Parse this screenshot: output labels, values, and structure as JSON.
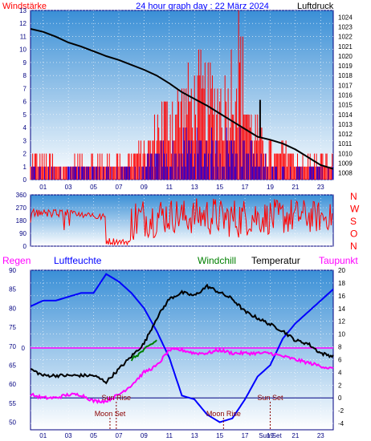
{
  "header": {
    "left_label": "Windstärke",
    "title": "24 hour graph day : 22 März 2024",
    "right_label": "Luftdruck"
  },
  "colors": {
    "background": "#ffffff",
    "panel_top": "#3a8fd6",
    "panel_bottom": "#ffffff",
    "wind_gust": "#ff0000",
    "wind_avg": "#0000ff",
    "pressure": "#000000",
    "wind_dir": "#ff0000",
    "temperature": "#000000",
    "humidity": "#0000ff",
    "dewpoint": "#ff00ff",
    "windchill": "#008000",
    "reference_line": "#ff00ff",
    "annotation": "#8b0000"
  },
  "x_ticks": [
    "01",
    "03",
    "05",
    "07",
    "09",
    "11",
    "13",
    "15",
    "17",
    "19",
    "21",
    "23"
  ],
  "panel3": {
    "legend": {
      "rain": "Regen",
      "humidity": "Luftfeuchte",
      "windchill": "Windchill",
      "temperature": "Temperatur",
      "dewpoint": "Taupunkt"
    },
    "left_ticks": [
      "90",
      "85",
      "80",
      "75",
      "70",
      "65",
      "60",
      "55",
      "50"
    ],
    "right_ticks": [
      "20",
      "18",
      "16",
      "14",
      "12",
      "10",
      "8",
      "6",
      "4",
      "2",
      "0",
      "-2",
      "-4"
    ],
    "rain_zero_label": "0",
    "x_ticks": [
      "01",
      "03",
      "05",
      "07",
      "09",
      "11",
      "13",
      "15",
      "17",
      "19",
      "21",
      "23"
    ],
    "sun_set_tick_label": "Sun Set",
    "events": {
      "sun_rise": "Sun Rise",
      "sun_set": "Sun Set",
      "moon_set": "Moon Set",
      "moon_rise": "Moon Rise"
    }
  },
  "chart_data": [
    {
      "type": "line",
      "panel": "wind-and-pressure",
      "x_unit": "hour",
      "left_axis": {
        "ticks": [
          "13",
          "12",
          "11",
          "10",
          "9",
          "8",
          "7",
          "6",
          "5",
          "4",
          "3",
          "2",
          "1",
          "0"
        ],
        "ylim": [
          0,
          13
        ]
      },
      "right_axis": {
        "ticks": [
          "1024",
          "1023",
          "1022",
          "1021",
          "1020",
          "1019",
          "1018",
          "1017",
          "1016",
          "1015",
          "1014",
          "1013",
          "1012",
          "1011",
          "1010",
          "1009",
          "1008"
        ],
        "ylim": [
          1007.3,
          1024.7
        ]
      },
      "pressure": [
        [
          0,
          1022.8
        ],
        [
          1,
          1022.5
        ],
        [
          2,
          1022.0
        ],
        [
          3,
          1021.4
        ],
        [
          4,
          1021.0
        ],
        [
          5,
          1020.5
        ],
        [
          6,
          1020.0
        ],
        [
          7,
          1019.6
        ],
        [
          8,
          1019.1
        ],
        [
          9,
          1018.6
        ],
        [
          10,
          1018.0
        ],
        [
          11,
          1017.2
        ],
        [
          12,
          1016.3
        ],
        [
          13,
          1015.6
        ],
        [
          14,
          1014.9
        ],
        [
          15,
          1014.1
        ],
        [
          16,
          1013.3
        ],
        [
          17,
          1012.5
        ],
        [
          18,
          1011.7
        ],
        [
          19,
          1011.4
        ],
        [
          20,
          1011.0
        ],
        [
          21,
          1010.4
        ],
        [
          22,
          1009.6
        ],
        [
          23,
          1008.8
        ],
        [
          24,
          1008.4
        ]
      ],
      "pressure_spike": [
        18.2,
        1015.5
      ],
      "wind_gust_peak": [
        [
          0,
          2
        ],
        [
          1,
          2
        ],
        [
          2,
          1
        ],
        [
          3,
          2
        ],
        [
          4,
          2
        ],
        [
          5,
          2
        ],
        [
          6,
          2
        ],
        [
          7,
          2
        ],
        [
          8,
          3
        ],
        [
          9,
          4
        ],
        [
          10,
          7
        ],
        [
          11,
          8
        ],
        [
          12,
          9
        ],
        [
          13,
          10
        ],
        [
          14,
          9
        ],
        [
          15,
          9
        ],
        [
          16,
          14
        ],
        [
          17,
          6
        ],
        [
          18,
          4
        ],
        [
          19,
          3
        ],
        [
          20,
          3
        ],
        [
          21,
          2
        ],
        [
          22,
          2
        ],
        [
          23,
          2
        ]
      ],
      "wind_avg_peak": [
        [
          0,
          1
        ],
        [
          1,
          1
        ],
        [
          2,
          1
        ],
        [
          3,
          1
        ],
        [
          4,
          1
        ],
        [
          5,
          1
        ],
        [
          6,
          1
        ],
        [
          7,
          1
        ],
        [
          8,
          1
        ],
        [
          9,
          2
        ],
        [
          10,
          3
        ],
        [
          11,
          3
        ],
        [
          12,
          4
        ],
        [
          13,
          4
        ],
        [
          14,
          4
        ],
        [
          15,
          4
        ],
        [
          16,
          4
        ],
        [
          17,
          3
        ],
        [
          18,
          2
        ],
        [
          19,
          1
        ],
        [
          20,
          1
        ],
        [
          21,
          1
        ],
        [
          22,
          1
        ],
        [
          23,
          1
        ]
      ]
    },
    {
      "type": "line",
      "panel": "wind-direction",
      "left_axis": {
        "ticks": [
          "360",
          "270",
          "180",
          "90",
          "0"
        ],
        "ylim": [
          0,
          360
        ]
      },
      "right_axis": {
        "ticks": [
          "N",
          "W",
          "S",
          "O",
          "N"
        ]
      },
      "direction_range": [
        [
          0,
          100,
          300
        ],
        [
          1,
          140,
          270
        ],
        [
          2,
          100,
          260
        ],
        [
          3,
          110,
          260
        ],
        [
          4,
          200,
          250
        ],
        [
          5,
          180,
          230
        ],
        [
          6,
          10,
          60
        ],
        [
          7,
          10,
          50
        ],
        [
          8,
          30,
          350
        ],
        [
          9,
          60,
          340
        ],
        [
          10,
          80,
          350
        ],
        [
          11,
          90,
          340
        ],
        [
          12,
          80,
          330
        ],
        [
          13,
          90,
          340
        ],
        [
          14,
          70,
          350
        ],
        [
          15,
          60,
          330
        ],
        [
          16,
          50,
          340
        ],
        [
          17,
          70,
          350
        ],
        [
          18,
          80,
          320
        ],
        [
          19,
          60,
          330
        ],
        [
          20,
          80,
          340
        ],
        [
          21,
          100,
          330
        ],
        [
          22,
          90,
          320
        ],
        [
          23,
          110,
          300
        ]
      ]
    },
    {
      "type": "line",
      "panel": "temperature-humidity",
      "left_axis": {
        "label": "Luftfeuchte",
        "ticks": [
          "90",
          "85",
          "80",
          "75",
          "70",
          "65",
          "60",
          "55",
          "50"
        ],
        "ylim": [
          48,
          90
        ]
      },
      "right_axis": {
        "ticks": [
          "20",
          "18",
          "16",
          "14",
          "12",
          "10",
          "8",
          "6",
          "4",
          "2",
          "0",
          "-2",
          "-4"
        ],
        "ylim": [
          -5,
          20
        ]
      },
      "series": [
        {
          "name": "Luftfeuchte",
          "axis": "left",
          "values": [
            [
              0,
              80.5
            ],
            [
              1,
              82
            ],
            [
              2,
              82
            ],
            [
              3,
              83
            ],
            [
              4,
              84
            ],
            [
              5,
              84
            ],
            [
              6,
              89
            ],
            [
              7,
              87
            ],
            [
              8,
              84
            ],
            [
              9,
              80
            ],
            [
              10,
              74
            ],
            [
              11,
              67
            ],
            [
              12,
              57
            ],
            [
              13,
              56
            ],
            [
              14,
              52
            ],
            [
              15,
              50
            ],
            [
              16,
              51
            ],
            [
              17,
              56
            ],
            [
              18,
              62
            ],
            [
              19,
              65
            ],
            [
              20,
              72
            ],
            [
              21,
              76
            ],
            [
              22,
              79
            ],
            [
              23,
              82
            ],
            [
              24,
              85
            ]
          ]
        },
        {
          "name": "Temperatur",
          "axis": "right",
          "values": [
            [
              0,
              4.5
            ],
            [
              1,
              3.5
            ],
            [
              2,
              3.5
            ],
            [
              3,
              3.5
            ],
            [
              4,
              3.5
            ],
            [
              5,
              3.5
            ],
            [
              6,
              2.5
            ],
            [
              7,
              4.5
            ],
            [
              8,
              6.5
            ],
            [
              9,
              8.5
            ],
            [
              10,
              12.5
            ],
            [
              11,
              15.5
            ],
            [
              12,
              16.5
            ],
            [
              13,
              16.0
            ],
            [
              14,
              17.5
            ],
            [
              15,
              16.5
            ],
            [
              16,
              15.5
            ],
            [
              17,
              13.5
            ],
            [
              18,
              12.5
            ],
            [
              19,
              11.5
            ],
            [
              20,
              10.5
            ],
            [
              21,
              9
            ],
            [
              22,
              8.5
            ],
            [
              23,
              7
            ],
            [
              24,
              6.5
            ]
          ]
        },
        {
          "name": "Taupunkt",
          "axis": "right",
          "values": [
            [
              0,
              0.5
            ],
            [
              1,
              0
            ],
            [
              2,
              0
            ],
            [
              3,
              0.5
            ],
            [
              4,
              0.5
            ],
            [
              5,
              -0.5
            ],
            [
              6,
              -0.5
            ],
            [
              7,
              0.5
            ],
            [
              8,
              2
            ],
            [
              9,
              4
            ],
            [
              10,
              5
            ],
            [
              11,
              7.5
            ],
            [
              12,
              7.5
            ],
            [
              13,
              7
            ],
            [
              14,
              7
            ],
            [
              15,
              7.5
            ],
            [
              16,
              7
            ],
            [
              17,
              7
            ],
            [
              18,
              7
            ],
            [
              19,
              7
            ],
            [
              20,
              6.5
            ],
            [
              21,
              6
            ],
            [
              22,
              5.5
            ],
            [
              23,
              5
            ],
            [
              24,
              4.5
            ]
          ]
        },
        {
          "name": "Windchill",
          "axis": "right",
          "values": [
            [
              8,
              6.0
            ],
            [
              9,
              7.5
            ],
            [
              10,
              9.0
            ]
          ]
        }
      ],
      "rain_zero_value": 0,
      "event_markers": [
        {
          "label": "Sun Rise",
          "hour": 6.8
        },
        {
          "label": "Sun Set",
          "hour": 19.0
        },
        {
          "label": "Moon Set",
          "hour": 6.3
        },
        {
          "label": "Moon Rise",
          "hour": 15.3
        }
      ]
    }
  ]
}
